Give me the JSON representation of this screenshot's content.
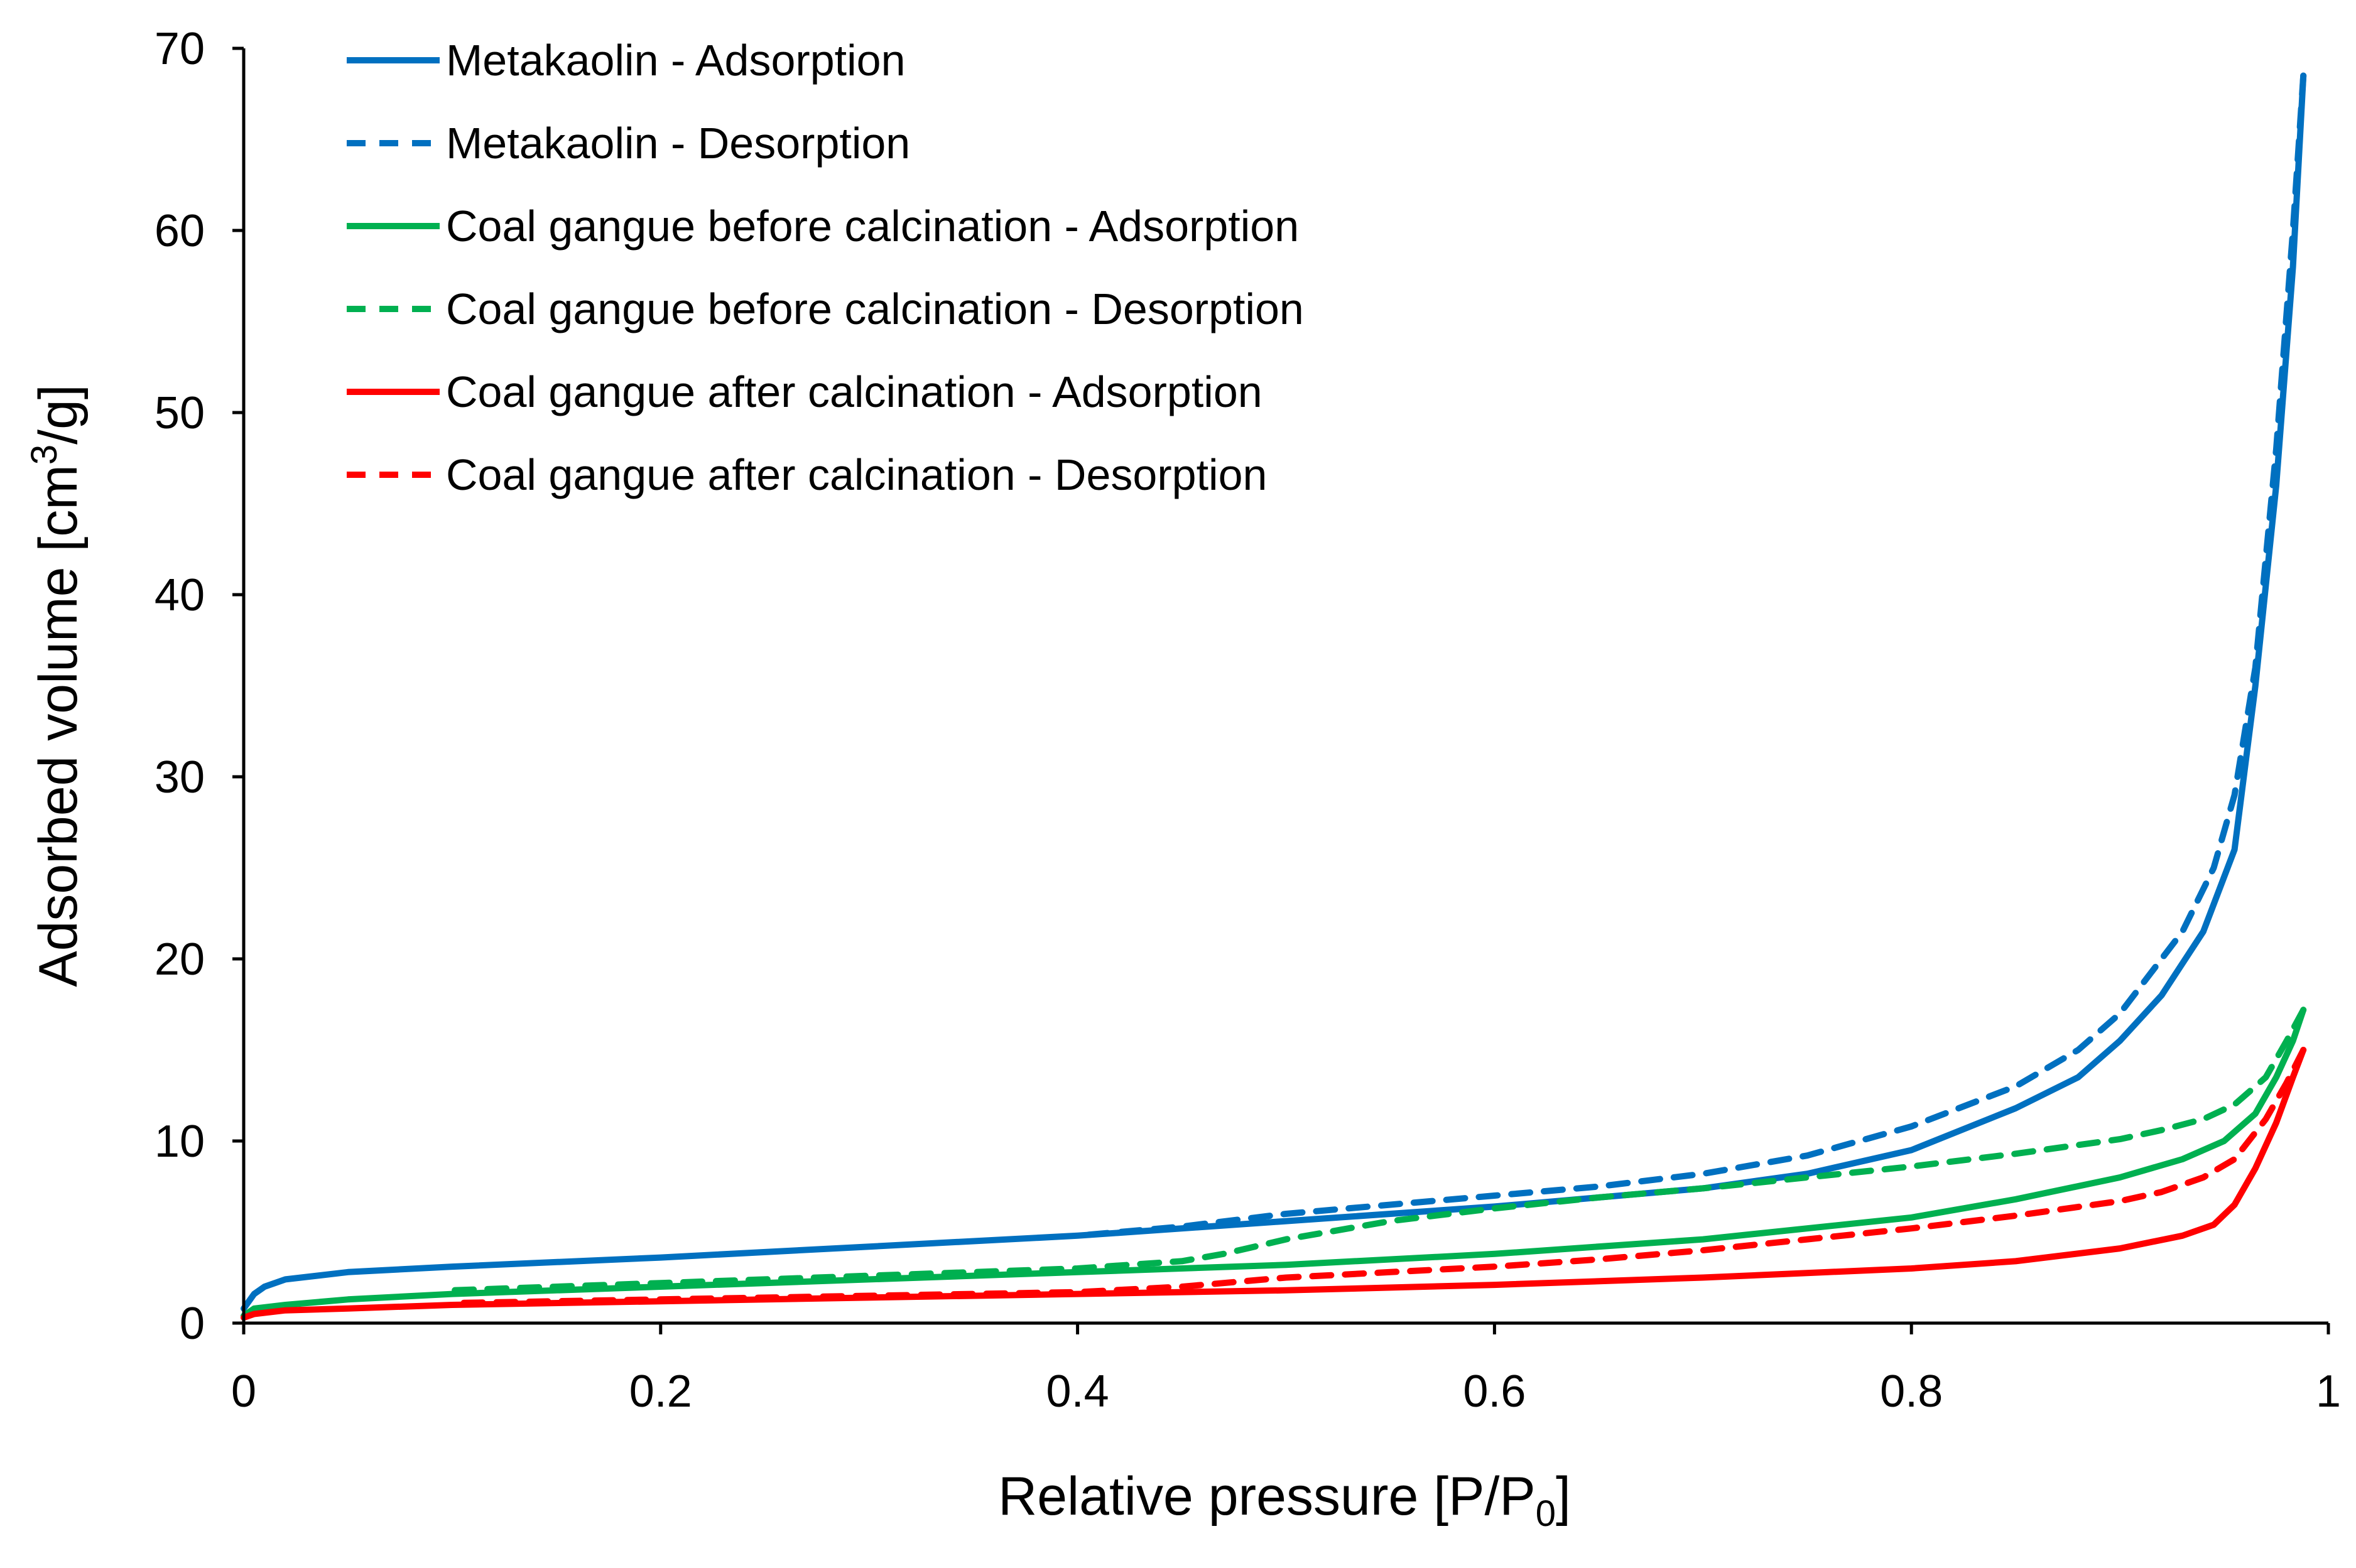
{
  "chart_data": {
    "type": "line",
    "title": "",
    "xlabel_main": "Relative pressure [P/P",
    "xlabel_sub": "0",
    "xlabel_end": "]",
    "ylabel_main": "Adsorbed volume [cm",
    "ylabel_sup": "3",
    "ylabel_end": "/g]",
    "xlim": [
      0,
      1
    ],
    "ylim": [
      0,
      70
    ],
    "x_ticks": [
      0,
      0.2,
      0.4,
      0.6,
      0.8,
      1
    ],
    "x_tick_labels": [
      "0",
      "0.2",
      "0.4",
      "0.6",
      "0.8",
      "1"
    ],
    "y_ticks": [
      0,
      10,
      20,
      30,
      40,
      50,
      60,
      70
    ],
    "y_tick_labels": [
      "0",
      "10",
      "20",
      "30",
      "40",
      "50",
      "60",
      "70"
    ],
    "grid": false,
    "legend_position": "top-left",
    "series": [
      {
        "name": "Metakaolin - Adsorption",
        "color": "#0070C0",
        "dash": "solid",
        "points": [
          [
            0.0,
            0.8
          ],
          [
            0.005,
            1.6
          ],
          [
            0.01,
            2.0
          ],
          [
            0.02,
            2.4
          ],
          [
            0.05,
            2.8
          ],
          [
            0.1,
            3.1
          ],
          [
            0.2,
            3.6
          ],
          [
            0.3,
            4.2
          ],
          [
            0.4,
            4.8
          ],
          [
            0.5,
            5.6
          ],
          [
            0.6,
            6.4
          ],
          [
            0.7,
            7.4
          ],
          [
            0.75,
            8.2
          ],
          [
            0.8,
            9.5
          ],
          [
            0.85,
            11.8
          ],
          [
            0.88,
            13.5
          ],
          [
            0.9,
            15.5
          ],
          [
            0.92,
            18.0
          ],
          [
            0.94,
            21.5
          ],
          [
            0.955,
            26.0
          ],
          [
            0.965,
            35.0
          ],
          [
            0.975,
            46.0
          ],
          [
            0.983,
            58.0
          ],
          [
            0.988,
            68.5
          ]
        ]
      },
      {
        "name": "Metakaolin - Desorption",
        "color": "#0070C0",
        "dash": "dashed",
        "points": [
          [
            0.988,
            68.5
          ],
          [
            0.983,
            60.0
          ],
          [
            0.975,
            48.0
          ],
          [
            0.965,
            36.0
          ],
          [
            0.955,
            29.0
          ],
          [
            0.945,
            25.0
          ],
          [
            0.93,
            21.5
          ],
          [
            0.9,
            17.0
          ],
          [
            0.88,
            15.0
          ],
          [
            0.85,
            13.0
          ],
          [
            0.8,
            10.8
          ],
          [
            0.75,
            9.2
          ],
          [
            0.7,
            8.2
          ],
          [
            0.65,
            7.5
          ],
          [
            0.6,
            7.0
          ],
          [
            0.55,
            6.5
          ],
          [
            0.5,
            6.0
          ],
          [
            0.45,
            5.3
          ],
          [
            0.4,
            4.8
          ]
        ]
      },
      {
        "name": "Coal gangue before calcination - Adsorption",
        "color": "#00B050",
        "dash": "solid",
        "points": [
          [
            0.0,
            0.4
          ],
          [
            0.005,
            0.8
          ],
          [
            0.02,
            1.0
          ],
          [
            0.05,
            1.3
          ],
          [
            0.1,
            1.6
          ],
          [
            0.2,
            2.0
          ],
          [
            0.3,
            2.4
          ],
          [
            0.4,
            2.8
          ],
          [
            0.5,
            3.2
          ],
          [
            0.6,
            3.8
          ],
          [
            0.7,
            4.6
          ],
          [
            0.8,
            5.8
          ],
          [
            0.85,
            6.8
          ],
          [
            0.9,
            8.0
          ],
          [
            0.93,
            9.0
          ],
          [
            0.95,
            10.0
          ],
          [
            0.965,
            11.5
          ],
          [
            0.975,
            13.5
          ],
          [
            0.983,
            15.5
          ],
          [
            0.988,
            17.2
          ]
        ]
      },
      {
        "name": "Coal gangue before calcination - Desorption",
        "color": "#00B050",
        "dash": "dashed",
        "points": [
          [
            0.988,
            17.2
          ],
          [
            0.98,
            15.5
          ],
          [
            0.97,
            13.5
          ],
          [
            0.955,
            12.0
          ],
          [
            0.94,
            11.2
          ],
          [
            0.92,
            10.6
          ],
          [
            0.9,
            10.1
          ],
          [
            0.85,
            9.3
          ],
          [
            0.8,
            8.6
          ],
          [
            0.75,
            8.0
          ],
          [
            0.7,
            7.4
          ],
          [
            0.65,
            6.9
          ],
          [
            0.6,
            6.3
          ],
          [
            0.55,
            5.6
          ],
          [
            0.5,
            4.6
          ],
          [
            0.47,
            3.8
          ],
          [
            0.45,
            3.4
          ],
          [
            0.4,
            3.0
          ],
          [
            0.3,
            2.6
          ],
          [
            0.2,
            2.2
          ],
          [
            0.1,
            1.8
          ]
        ]
      },
      {
        "name": "Coal gangue after calcination - Adsorption",
        "color": "#FF0000",
        "dash": "solid",
        "points": [
          [
            0.0,
            0.3
          ],
          [
            0.005,
            0.5
          ],
          [
            0.02,
            0.7
          ],
          [
            0.05,
            0.8
          ],
          [
            0.1,
            1.0
          ],
          [
            0.2,
            1.2
          ],
          [
            0.3,
            1.4
          ],
          [
            0.4,
            1.6
          ],
          [
            0.5,
            1.8
          ],
          [
            0.6,
            2.1
          ],
          [
            0.7,
            2.5
          ],
          [
            0.8,
            3.0
          ],
          [
            0.85,
            3.4
          ],
          [
            0.9,
            4.1
          ],
          [
            0.93,
            4.8
          ],
          [
            0.945,
            5.4
          ],
          [
            0.955,
            6.5
          ],
          [
            0.965,
            8.5
          ],
          [
            0.975,
            11.0
          ],
          [
            0.983,
            13.5
          ],
          [
            0.988,
            15.0
          ]
        ]
      },
      {
        "name": "Coal gangue after calcination - Desorption",
        "color": "#FF0000",
        "dash": "dashed",
        "points": [
          [
            0.988,
            15.0
          ],
          [
            0.98,
            13.2
          ],
          [
            0.97,
            11.2
          ],
          [
            0.955,
            9.0
          ],
          [
            0.94,
            8.0
          ],
          [
            0.92,
            7.2
          ],
          [
            0.9,
            6.7
          ],
          [
            0.85,
            5.9
          ],
          [
            0.8,
            5.2
          ],
          [
            0.75,
            4.6
          ],
          [
            0.7,
            4.0
          ],
          [
            0.65,
            3.5
          ],
          [
            0.6,
            3.1
          ],
          [
            0.55,
            2.8
          ],
          [
            0.5,
            2.5
          ],
          [
            0.45,
            2.0
          ],
          [
            0.4,
            1.7
          ],
          [
            0.3,
            1.5
          ],
          [
            0.2,
            1.3
          ],
          [
            0.1,
            1.1
          ]
        ]
      }
    ]
  }
}
